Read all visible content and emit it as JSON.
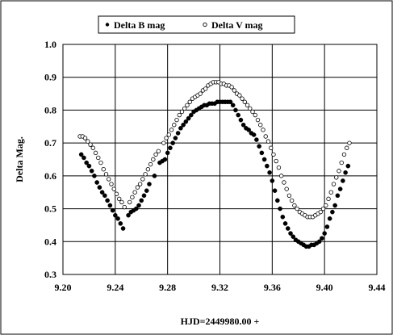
{
  "chart_data": {
    "type": "scatter",
    "title": "",
    "xlabel": "HJD=2449980.00 +",
    "ylabel": "Delta Mag.",
    "xlim": [
      9.2,
      9.44
    ],
    "ylim": [
      0.3,
      1.0
    ],
    "x_ticks": [
      "9.20",
      "9.24",
      "9.28",
      "9.32",
      "9.36",
      "9.40",
      "9.44"
    ],
    "y_ticks": [
      "0.3",
      "0.4",
      "0.5",
      "0.6",
      "0.7",
      "0.8",
      "0.9",
      "1.0"
    ],
    "grid": true,
    "legend_position": "top",
    "series": [
      {
        "name": "Delta B mag",
        "marker": "filled-circle",
        "color": "#000000",
        "points": [
          [
            9.214,
            0.665
          ],
          [
            9.216,
            0.655
          ],
          [
            9.218,
            0.64
          ],
          [
            9.22,
            0.63
          ],
          [
            9.222,
            0.615
          ],
          [
            9.224,
            0.6
          ],
          [
            9.226,
            0.58
          ],
          [
            9.228,
            0.565
          ],
          [
            9.23,
            0.55
          ],
          [
            9.232,
            0.54
          ],
          [
            9.234,
            0.525
          ],
          [
            9.236,
            0.51
          ],
          [
            9.238,
            0.495
          ],
          [
            9.24,
            0.48
          ],
          [
            9.242,
            0.47
          ],
          [
            9.244,
            0.455
          ],
          [
            9.246,
            0.44
          ],
          [
            9.25,
            0.48
          ],
          [
            9.252,
            0.49
          ],
          [
            9.254,
            0.495
          ],
          [
            9.256,
            0.5
          ],
          [
            9.258,
            0.51
          ],
          [
            9.26,
            0.525
          ],
          [
            9.262,
            0.54
          ],
          [
            9.264,
            0.555
          ],
          [
            9.266,
            0.575
          ],
          [
            9.27,
            0.6
          ],
          [
            9.274,
            0.64
          ],
          [
            9.276,
            0.645
          ],
          [
            9.278,
            0.65
          ],
          [
            9.28,
            0.67
          ],
          [
            9.282,
            0.685
          ],
          [
            9.284,
            0.7
          ],
          [
            9.286,
            0.715
          ],
          [
            9.288,
            0.73
          ],
          [
            9.29,
            0.745
          ],
          [
            9.292,
            0.755
          ],
          [
            9.294,
            0.765
          ],
          [
            9.296,
            0.775
          ],
          [
            9.298,
            0.785
          ],
          [
            9.3,
            0.795
          ],
          [
            9.302,
            0.8
          ],
          [
            9.304,
            0.805
          ],
          [
            9.306,
            0.81
          ],
          [
            9.308,
            0.815
          ],
          [
            9.31,
            0.815
          ],
          [
            9.312,
            0.82
          ],
          [
            9.314,
            0.82
          ],
          [
            9.316,
            0.82
          ],
          [
            9.318,
            0.825
          ],
          [
            9.32,
            0.825
          ],
          [
            9.322,
            0.825
          ],
          [
            9.324,
            0.825
          ],
          [
            9.326,
            0.825
          ],
          [
            9.328,
            0.825
          ],
          [
            9.33,
            0.815
          ],
          [
            9.332,
            0.8
          ],
          [
            9.334,
            0.785
          ],
          [
            9.336,
            0.77
          ],
          [
            9.338,
            0.755
          ],
          [
            9.34,
            0.745
          ],
          [
            9.342,
            0.74
          ],
          [
            9.344,
            0.73
          ],
          [
            9.346,
            0.725
          ],
          [
            9.348,
            0.71
          ],
          [
            9.35,
            0.69
          ],
          [
            9.352,
            0.67
          ],
          [
            9.354,
            0.65
          ],
          [
            9.356,
            0.63
          ],
          [
            9.358,
            0.61
          ],
          [
            9.36,
            0.585
          ],
          [
            9.362,
            0.555
          ],
          [
            9.364,
            0.525
          ],
          [
            9.366,
            0.5
          ],
          [
            9.368,
            0.475
          ],
          [
            9.37,
            0.455
          ],
          [
            9.372,
            0.44
          ],
          [
            9.374,
            0.425
          ],
          [
            9.376,
            0.415
          ],
          [
            9.378,
            0.405
          ],
          [
            9.38,
            0.4
          ],
          [
            9.382,
            0.395
          ],
          [
            9.384,
            0.39
          ],
          [
            9.386,
            0.385
          ],
          [
            9.388,
            0.385
          ],
          [
            9.39,
            0.39
          ],
          [
            9.392,
            0.39
          ],
          [
            9.394,
            0.395
          ],
          [
            9.396,
            0.4
          ],
          [
            9.398,
            0.41
          ],
          [
            9.4,
            0.425
          ],
          [
            9.402,
            0.445
          ],
          [
            9.404,
            0.47
          ],
          [
            9.406,
            0.49
          ],
          [
            9.408,
            0.51
          ],
          [
            9.41,
            0.54
          ],
          [
            9.412,
            0.56
          ],
          [
            9.414,
            0.585
          ],
          [
            9.416,
            0.61
          ],
          [
            9.418,
            0.63
          ]
        ]
      },
      {
        "name": "Delta V mag",
        "marker": "open-circle",
        "color": "#000000",
        "points": [
          [
            9.213,
            0.72
          ],
          [
            9.215,
            0.72
          ],
          [
            9.217,
            0.715
          ],
          [
            9.219,
            0.705
          ],
          [
            9.221,
            0.695
          ],
          [
            9.223,
            0.685
          ],
          [
            9.225,
            0.67
          ],
          [
            9.227,
            0.655
          ],
          [
            9.229,
            0.64
          ],
          [
            9.231,
            0.62
          ],
          [
            9.233,
            0.605
          ],
          [
            9.235,
            0.59
          ],
          [
            9.237,
            0.575
          ],
          [
            9.239,
            0.56
          ],
          [
            9.241,
            0.545
          ],
          [
            9.243,
            0.53
          ],
          [
            9.245,
            0.52
          ],
          [
            9.247,
            0.505
          ],
          [
            9.251,
            0.52
          ],
          [
            9.253,
            0.535
          ],
          [
            9.255,
            0.55
          ],
          [
            9.257,
            0.565
          ],
          [
            9.259,
            0.575
          ],
          [
            9.261,
            0.59
          ],
          [
            9.263,
            0.605
          ],
          [
            9.265,
            0.62
          ],
          [
            9.267,
            0.635
          ],
          [
            9.269,
            0.65
          ],
          [
            9.271,
            0.665
          ],
          [
            9.273,
            0.675
          ],
          [
            9.277,
            0.7
          ],
          [
            9.279,
            0.715
          ],
          [
            9.281,
            0.725
          ],
          [
            9.283,
            0.74
          ],
          [
            9.285,
            0.755
          ],
          [
            9.287,
            0.77
          ],
          [
            9.289,
            0.785
          ],
          [
            9.291,
            0.795
          ],
          [
            9.293,
            0.805
          ],
          [
            9.295,
            0.815
          ],
          [
            9.297,
            0.825
          ],
          [
            9.299,
            0.835
          ],
          [
            9.301,
            0.84
          ],
          [
            9.303,
            0.845
          ],
          [
            9.305,
            0.85
          ],
          [
            9.307,
            0.86
          ],
          [
            9.309,
            0.865
          ],
          [
            9.311,
            0.875
          ],
          [
            9.313,
            0.88
          ],
          [
            9.315,
            0.885
          ],
          [
            9.317,
            0.885
          ],
          [
            9.319,
            0.885
          ],
          [
            9.321,
            0.88
          ],
          [
            9.323,
            0.88
          ],
          [
            9.325,
            0.875
          ],
          [
            9.327,
            0.875
          ],
          [
            9.329,
            0.87
          ],
          [
            9.331,
            0.86
          ],
          [
            9.333,
            0.85
          ],
          [
            9.335,
            0.845
          ],
          [
            9.337,
            0.835
          ],
          [
            9.339,
            0.825
          ],
          [
            9.341,
            0.815
          ],
          [
            9.343,
            0.805
          ],
          [
            9.345,
            0.795
          ],
          [
            9.347,
            0.785
          ],
          [
            9.349,
            0.77
          ],
          [
            9.351,
            0.755
          ],
          [
            9.353,
            0.74
          ],
          [
            9.355,
            0.72
          ],
          [
            9.357,
            0.705
          ],
          [
            9.359,
            0.685
          ],
          [
            9.361,
            0.665
          ],
          [
            9.363,
            0.645
          ],
          [
            9.365,
            0.625
          ],
          [
            9.367,
            0.6
          ],
          [
            9.369,
            0.58
          ],
          [
            9.371,
            0.56
          ],
          [
            9.373,
            0.54
          ],
          [
            9.375,
            0.525
          ],
          [
            9.377,
            0.51
          ],
          [
            9.379,
            0.5
          ],
          [
            9.381,
            0.49
          ],
          [
            9.383,
            0.485
          ],
          [
            9.385,
            0.48
          ],
          [
            9.387,
            0.475
          ],
          [
            9.389,
            0.475
          ],
          [
            9.391,
            0.475
          ],
          [
            9.393,
            0.48
          ],
          [
            9.395,
            0.485
          ],
          [
            9.397,
            0.49
          ],
          [
            9.399,
            0.5
          ],
          [
            9.401,
            0.51
          ],
          [
            9.403,
            0.53
          ],
          [
            9.405,
            0.55
          ],
          [
            9.407,
            0.575
          ],
          [
            9.409,
            0.595
          ],
          [
            9.411,
            0.615
          ],
          [
            9.413,
            0.64
          ],
          [
            9.415,
            0.665
          ],
          [
            9.417,
            0.685
          ],
          [
            9.419,
            0.7
          ]
        ]
      }
    ]
  }
}
